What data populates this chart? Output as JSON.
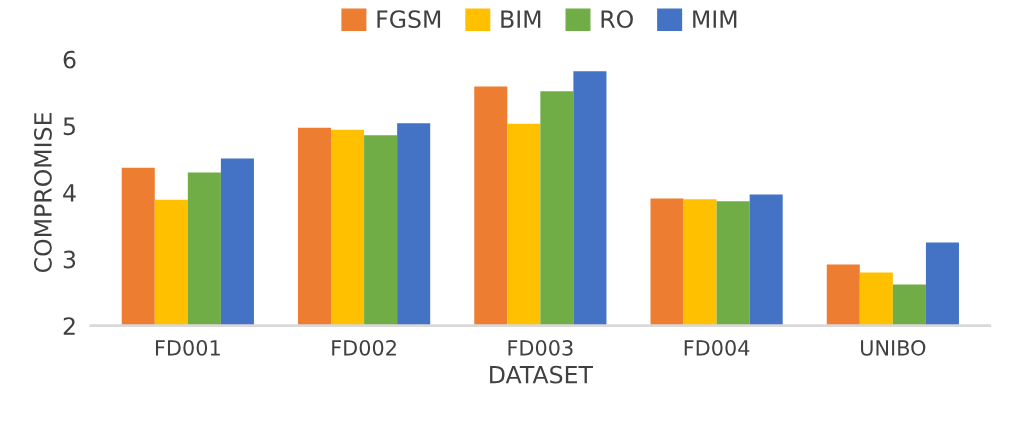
{
  "chart_data": {
    "type": "bar",
    "xlabel": "DATASET",
    "ylabel": "COMPROMISE",
    "categories": [
      "FD001",
      "FD002",
      "FD003",
      "FD004",
      "UNIBO"
    ],
    "series": [
      {
        "name": "FGSM",
        "color": "#ed7d31",
        "values": [
          4.37,
          4.97,
          5.59,
          3.91,
          2.92
        ]
      },
      {
        "name": "BIM",
        "color": "#ffc000",
        "values": [
          3.89,
          4.94,
          5.03,
          3.9,
          2.8
        ]
      },
      {
        "name": "RO",
        "color": "#70ad47",
        "values": [
          4.3,
          4.86,
          5.52,
          3.87,
          2.62
        ]
      },
      {
        "name": "MIM",
        "color": "#4472c4",
        "values": [
          4.51,
          5.04,
          5.82,
          3.97,
          3.25
        ]
      }
    ],
    "ylim": [
      2,
      6
    ],
    "yticks": [
      2,
      3,
      4,
      5,
      6
    ],
    "grid": false,
    "legend": "top"
  }
}
